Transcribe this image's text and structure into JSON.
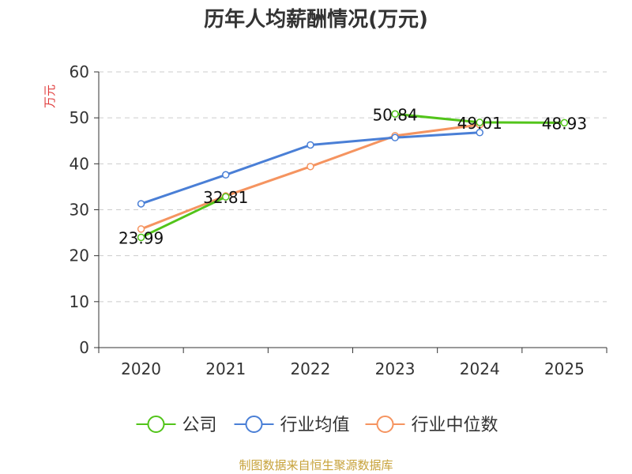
{
  "chart_data": {
    "type": "line",
    "title": "历年人均薪酬情况(万元)",
    "ylabel": "万元",
    "xlabel": "",
    "ylim": [
      0,
      60
    ],
    "yticks": [
      0,
      10,
      20,
      30,
      40,
      50,
      60
    ],
    "grid": true,
    "legend_position": "bottom",
    "categories": [
      "2020",
      "2021",
      "2022",
      "2023",
      "2024",
      "2025"
    ],
    "series": [
      {
        "name": "公司",
        "color": "#52c41a",
        "values": [
          23.99,
          32.81,
          null,
          50.84,
          49.01,
          48.93
        ],
        "labels": [
          "23.99",
          "32.81",
          null,
          "50.84",
          "49.01",
          "48.93"
        ]
      },
      {
        "name": "行业均值",
        "color": "#4a7fd6",
        "values": [
          31.3,
          37.6,
          44.1,
          45.7,
          46.8,
          null
        ]
      },
      {
        "name": "行业中位数",
        "color": "#f59460",
        "values": [
          25.8,
          33.0,
          39.4,
          46.1,
          48.5,
          null
        ]
      }
    ]
  },
  "source_note": "制图数据来自恒生聚源数据库"
}
